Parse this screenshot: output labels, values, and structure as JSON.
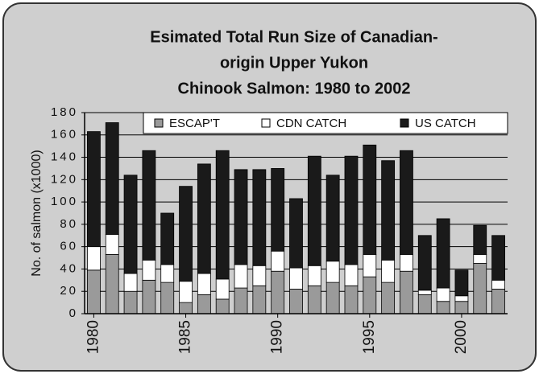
{
  "chart_data": {
    "type": "stacked_bar",
    "title": [
      "Esimated Total Run Size of Canadian-",
      "origin Upper Yukon",
      "Chinook Salmon: 1980 to 2002"
    ],
    "y_label": "No. of salmon (x1000)",
    "categories": [
      "1980",
      null,
      null,
      null,
      null,
      "1985",
      null,
      null,
      null,
      null,
      "1990",
      null,
      null,
      null,
      null,
      "1995",
      null,
      null,
      null,
      null,
      "2000",
      null,
      null
    ],
    "series": [
      {
        "name": "ESCAP'T",
        "color": "#9a9a9a",
        "values": [
          39,
          53,
          20,
          30,
          28,
          10,
          17,
          13,
          23,
          25,
          38,
          22,
          25,
          28,
          25,
          33,
          28,
          38,
          17,
          11,
          11,
          45,
          22
        ]
      },
      {
        "name": "CDN CATCH",
        "color": "#ffffff",
        "values": [
          21,
          18,
          16,
          18,
          16,
          19,
          19,
          18,
          21,
          18,
          18,
          19,
          18,
          19,
          19,
          20,
          20,
          15,
          4,
          12,
          5,
          8,
          8
        ]
      },
      {
        "name": "US CATCH",
        "color": "#1a1a1a",
        "values": [
          103,
          100,
          88,
          98,
          46,
          85,
          98,
          115,
          85,
          86,
          74,
          62,
          98,
          77,
          97,
          98,
          89,
          93,
          49,
          62,
          23,
          26,
          40
        ]
      }
    ],
    "ylim": [
      0,
      180
    ],
    "yticks": [
      0,
      20,
      40,
      60,
      80,
      100,
      120,
      140,
      160,
      180
    ],
    "grid": true,
    "legend": "top"
  }
}
